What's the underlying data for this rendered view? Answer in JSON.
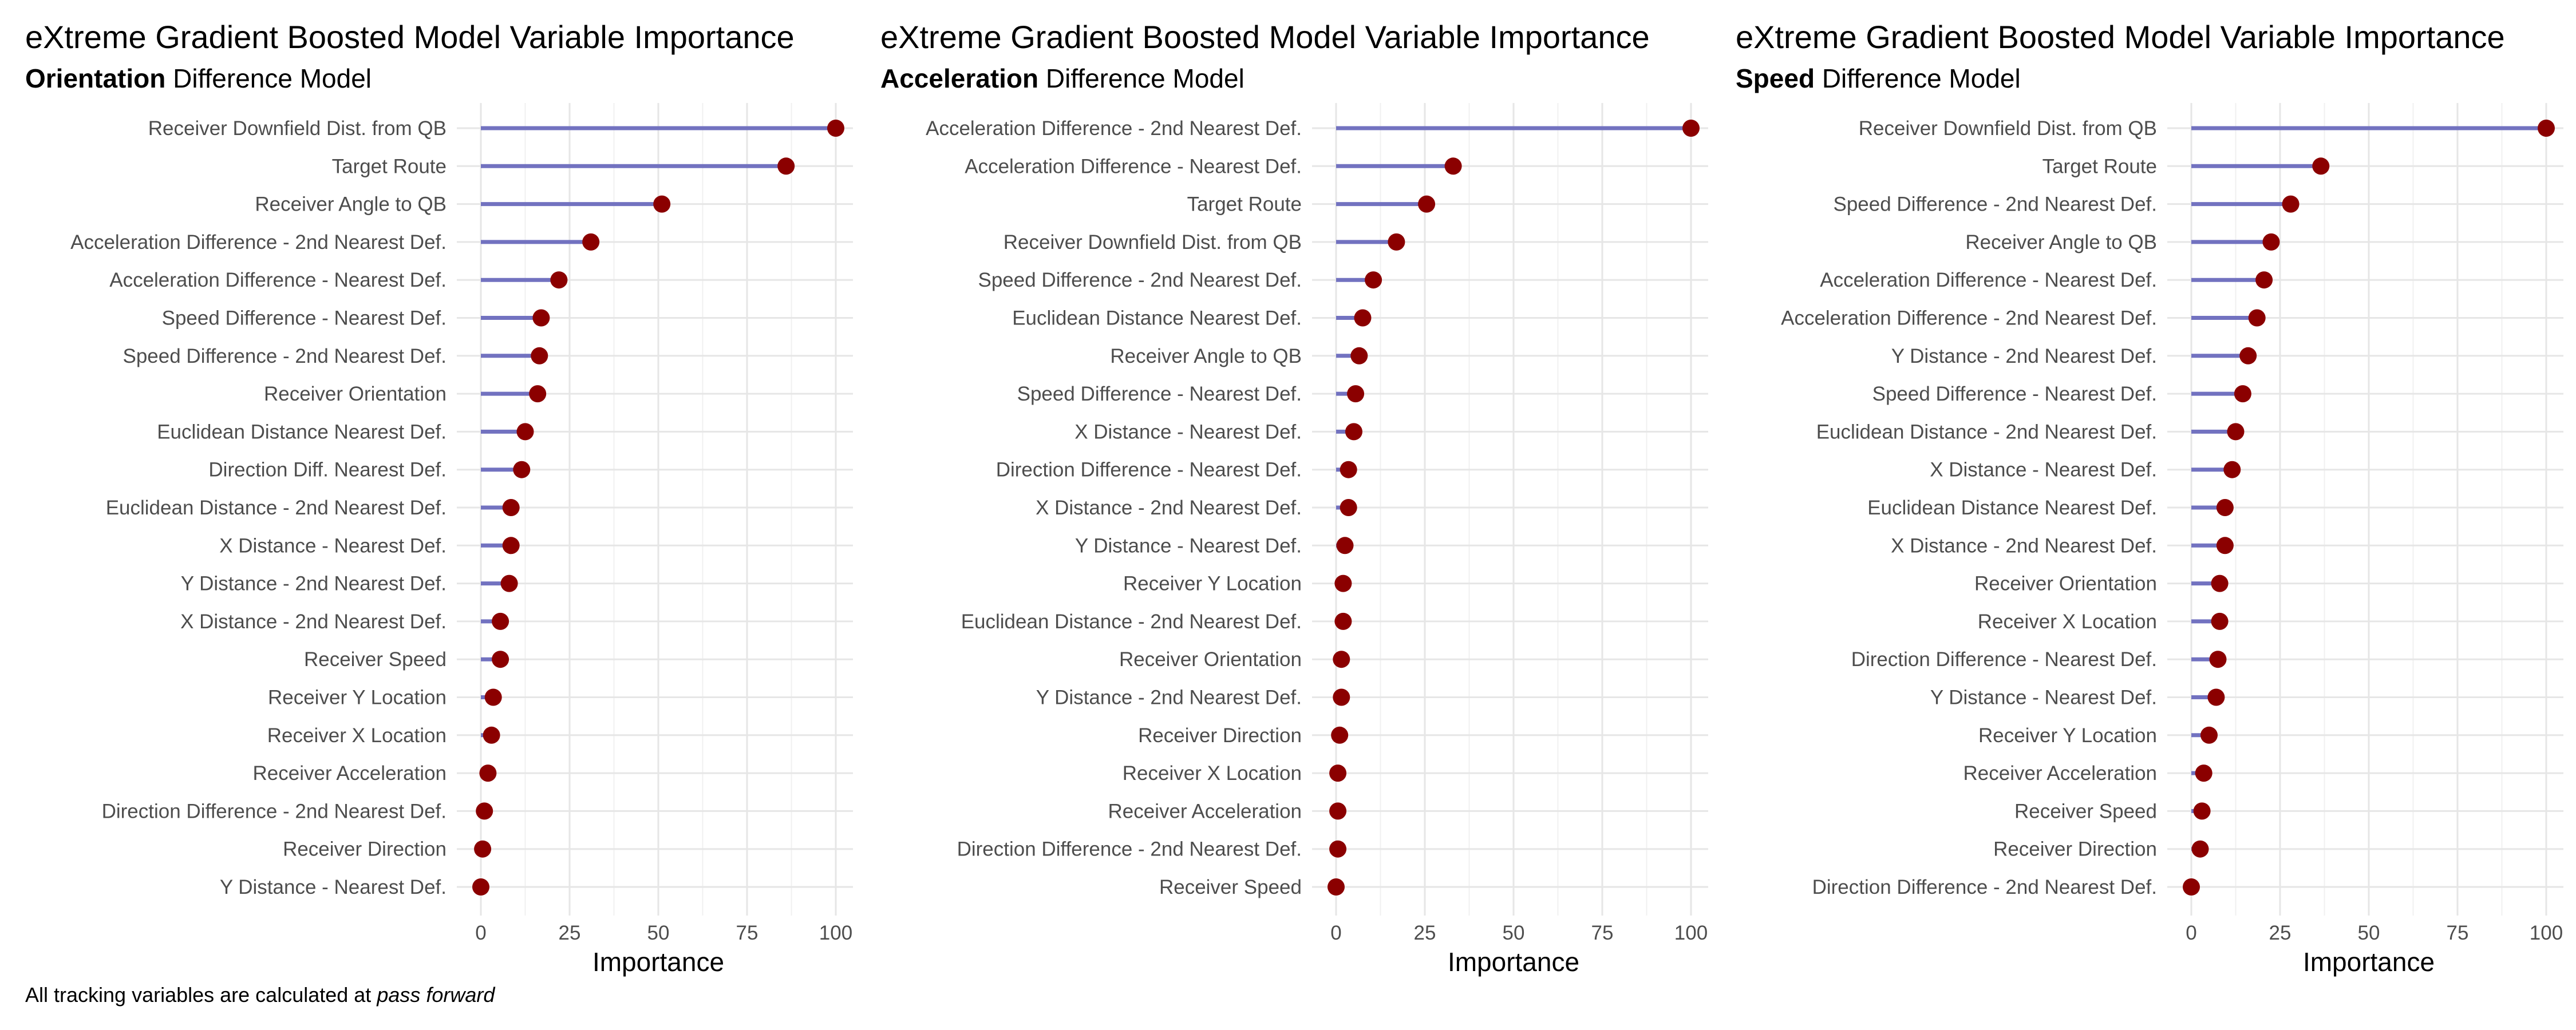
{
  "caption": {
    "prefix": "All tracking variables are calculated at ",
    "emphasis": "pass forward"
  },
  "colors": {
    "segment": "#7272c0",
    "point": "#8b0000",
    "grid": "#e6e6e6",
    "label": "#4d4d4d"
  },
  "chart_data": [
    {
      "type": "lollipop",
      "title": "eXtreme Gradient Boosted Model Variable Importance",
      "subtitle_bold": "Orientation",
      "subtitle_rest": " Difference Model",
      "xlabel": "Importance",
      "xlim": [
        0,
        100
      ],
      "xticks": [
        0,
        25,
        50,
        75,
        100
      ],
      "grid": true,
      "categories": [
        "Receiver Downfield Dist. from QB",
        "Target Route",
        "Receiver Angle to QB",
        "Acceleration Difference - 2nd Nearest Def.",
        "Acceleration Difference - Nearest Def.",
        "Speed Difference - Nearest Def.",
        "Speed Difference - 2nd Nearest Def.",
        "Receiver Orientation",
        "Euclidean Distance Nearest Def.",
        "Direction Diff. Nearest Def.",
        "Euclidean Distance - 2nd Nearest Def.",
        "X Distance - Nearest Def.",
        "Y Distance - 2nd Nearest Def.",
        "X Distance - 2nd Nearest Def.",
        "Receiver Speed",
        "Receiver Y Location",
        "Receiver X Location",
        "Receiver Acceleration",
        "Direction Difference - 2nd Nearest Def.",
        "Receiver Direction",
        "Y Distance - Nearest Def."
      ],
      "values": [
        100,
        86,
        51,
        31,
        22,
        17,
        16.5,
        16,
        12.5,
        11.5,
        8.5,
        8.5,
        8,
        5.5,
        5.5,
        3.5,
        3,
        2,
        1,
        0.5,
        0
      ]
    },
    {
      "type": "lollipop",
      "title": "eXtreme Gradient Boosted Model Variable Importance",
      "subtitle_bold": "Acceleration",
      "subtitle_rest": " Difference Model",
      "xlabel": "Importance",
      "xlim": [
        0,
        100
      ],
      "xticks": [
        0,
        25,
        50,
        75,
        100
      ],
      "grid": true,
      "categories": [
        "Acceleration Difference - 2nd Nearest Def.",
        "Acceleration Difference - Nearest Def.",
        "Target Route",
        "Receiver Downfield Dist. from QB",
        "Speed Difference - 2nd Nearest Def.",
        "Euclidean Distance Nearest Def.",
        "Receiver Angle to QB",
        "Speed Difference - Nearest Def.",
        "X Distance - Nearest Def.",
        "Direction Difference - Nearest Def.",
        "X Distance - 2nd Nearest Def.",
        "Y Distance - Nearest Def.",
        "Receiver Y Location",
        "Euclidean Distance - 2nd Nearest Def.",
        "Receiver Orientation",
        "Y Distance - 2nd Nearest Def.",
        "Receiver Direction",
        "Receiver X Location",
        "Receiver Acceleration",
        "Direction Difference - 2nd Nearest Def.",
        "Receiver Speed"
      ],
      "values": [
        100,
        33,
        25.5,
        17,
        10.5,
        7.5,
        6.5,
        5.5,
        5,
        3.5,
        3.5,
        2.5,
        2,
        2,
        1.5,
        1.5,
        1,
        0.5,
        0.5,
        0.5,
        0
      ]
    },
    {
      "type": "lollipop",
      "title": "eXtreme Gradient Boosted Model Variable Importance",
      "subtitle_bold": "Speed",
      "subtitle_rest": " Difference Model",
      "xlabel": "Importance",
      "xlim": [
        0,
        100
      ],
      "xticks": [
        0,
        25,
        50,
        75,
        100
      ],
      "grid": true,
      "categories": [
        "Receiver Downfield Dist. from QB",
        "Target Route",
        "Speed Difference - 2nd Nearest Def.",
        "Receiver Angle to QB",
        "Acceleration Difference - Nearest Def.",
        "Acceleration Difference - 2nd Nearest Def.",
        "Y Distance - 2nd Nearest Def.",
        "Speed Difference - Nearest Def.",
        "Euclidean Distance - 2nd Nearest Def.",
        "X Distance - Nearest Def.",
        "Euclidean Distance Nearest Def.",
        "X Distance - 2nd Nearest Def.",
        "Receiver Orientation",
        "Receiver X Location",
        "Direction Difference - Nearest Def.",
        "Y Distance - Nearest Def.",
        "Receiver Y Location",
        "Receiver Acceleration",
        "Receiver Speed",
        "Receiver Direction",
        "Direction Difference - 2nd Nearest Def."
      ],
      "values": [
        100,
        36.5,
        28,
        22.5,
        20.5,
        18.5,
        16,
        14.5,
        12.5,
        11.5,
        9.5,
        9.5,
        8,
        8,
        7.5,
        7,
        5,
        3.5,
        3,
        2.5,
        0
      ]
    }
  ]
}
